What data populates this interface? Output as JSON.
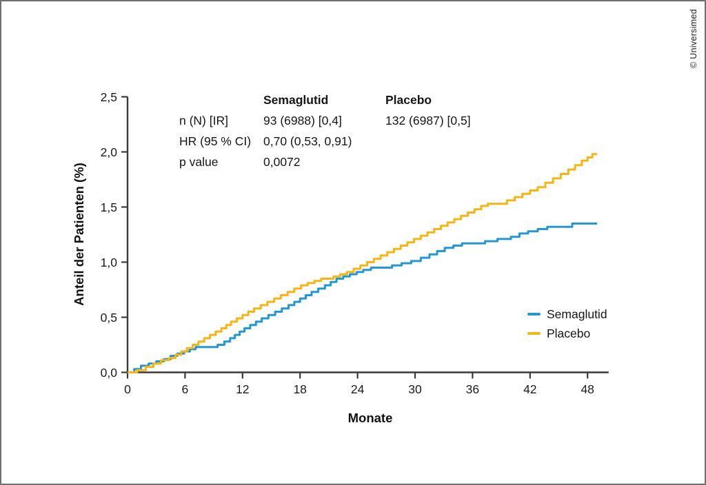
{
  "credit": "© Universimed",
  "colors": {
    "semaglutid": "#2397d3",
    "placebo": "#f6b513",
    "axis": "#3a3a3a",
    "text": "#1b1b1b"
  },
  "stats_table": {
    "col_headers": {
      "semaglutid": "Semaglutid",
      "placebo": "Placebo"
    },
    "rows": [
      {
        "label": "n (N) [IR]",
        "semaglutid": "93 (6988) [0,4]",
        "placebo": "132 (6987) [0,5]"
      },
      {
        "label": "HR (95 % CI)",
        "semaglutid": "0,70 (0,53, 0,91)",
        "placebo": ""
      },
      {
        "label": "p value",
        "semaglutid": "0,0072",
        "placebo": ""
      }
    ]
  },
  "legend": {
    "items": [
      {
        "label": "Semaglutid",
        "color": "#2397d3"
      },
      {
        "label": "Placebo",
        "color": "#f6b513"
      }
    ]
  },
  "chart_data": {
    "type": "line",
    "subtype": "kaplan-meier-cumulative-incidence-step",
    "title": "",
    "xlabel": "Monate",
    "ylabel": "Anteil der Patienten (%)",
    "xlim": [
      0,
      50.2
    ],
    "ylim": [
      0,
      2.5
    ],
    "x_ticks": [
      0,
      6,
      12,
      18,
      24,
      30,
      36,
      42,
      48
    ],
    "y_ticks": [
      {
        "value": 0.0,
        "label": "0,0"
      },
      {
        "value": 0.5,
        "label": "0,5"
      },
      {
        "value": 1.0,
        "label": "1,0"
      },
      {
        "value": 1.5,
        "label": "1,5"
      },
      {
        "value": 2.0,
        "label": "2,0"
      },
      {
        "value": 2.5,
        "label": "2,5"
      }
    ],
    "grid": false,
    "legend_position": "inside-right",
    "series": [
      {
        "name": "Semaglutid",
        "color": "#2397d3",
        "step": "after",
        "points": [
          [
            0,
            0
          ],
          [
            0.7,
            0.03
          ],
          [
            1.4,
            0.06
          ],
          [
            2.2,
            0.08
          ],
          [
            3.0,
            0.1
          ],
          [
            3.8,
            0.12
          ],
          [
            4.5,
            0.15
          ],
          [
            5.2,
            0.17
          ],
          [
            5.9,
            0.19
          ],
          [
            6.5,
            0.21
          ],
          [
            7.1,
            0.23
          ],
          [
            9.4,
            0.25
          ],
          [
            10.1,
            0.28
          ],
          [
            10.7,
            0.31
          ],
          [
            11.2,
            0.34
          ],
          [
            11.7,
            0.37
          ],
          [
            12.2,
            0.4
          ],
          [
            12.8,
            0.43
          ],
          [
            13.4,
            0.46
          ],
          [
            14.0,
            0.49
          ],
          [
            14.7,
            0.52
          ],
          [
            15.4,
            0.55
          ],
          [
            16.1,
            0.58
          ],
          [
            16.8,
            0.61
          ],
          [
            17.4,
            0.64
          ],
          [
            18.0,
            0.67
          ],
          [
            18.6,
            0.7
          ],
          [
            19.2,
            0.73
          ],
          [
            19.9,
            0.76
          ],
          [
            20.6,
            0.79
          ],
          [
            21.2,
            0.82
          ],
          [
            21.8,
            0.85
          ],
          [
            22.5,
            0.87
          ],
          [
            23.2,
            0.89
          ],
          [
            23.9,
            0.91
          ],
          [
            24.6,
            0.93
          ],
          [
            25.4,
            0.95
          ],
          [
            27.6,
            0.97
          ],
          [
            28.6,
            0.99
          ],
          [
            29.6,
            1.01
          ],
          [
            30.6,
            1.04
          ],
          [
            31.5,
            1.07
          ],
          [
            32.3,
            1.1
          ],
          [
            33.1,
            1.13
          ],
          [
            34.0,
            1.15
          ],
          [
            34.9,
            1.17
          ],
          [
            37.3,
            1.19
          ],
          [
            38.6,
            1.21
          ],
          [
            40.0,
            1.23
          ],
          [
            40.9,
            1.26
          ],
          [
            41.8,
            1.28
          ],
          [
            42.8,
            1.3
          ],
          [
            43.8,
            1.32
          ],
          [
            46.4,
            1.35
          ],
          [
            49.0,
            1.35
          ]
        ]
      },
      {
        "name": "Placebo",
        "color": "#f6b513",
        "step": "after",
        "points": [
          [
            0,
            0
          ],
          [
            1.0,
            0.02
          ],
          [
            1.9,
            0.05
          ],
          [
            2.7,
            0.08
          ],
          [
            3.5,
            0.11
          ],
          [
            4.3,
            0.13
          ],
          [
            5.0,
            0.16
          ],
          [
            5.6,
            0.19
          ],
          [
            6.2,
            0.22
          ],
          [
            6.8,
            0.25
          ],
          [
            7.4,
            0.28
          ],
          [
            8.0,
            0.31
          ],
          [
            8.6,
            0.34
          ],
          [
            9.2,
            0.37
          ],
          [
            9.8,
            0.4
          ],
          [
            10.3,
            0.43
          ],
          [
            10.8,
            0.46
          ],
          [
            11.4,
            0.49
          ],
          [
            12.0,
            0.52
          ],
          [
            12.6,
            0.55
          ],
          [
            13.2,
            0.58
          ],
          [
            13.9,
            0.61
          ],
          [
            14.6,
            0.64
          ],
          [
            15.3,
            0.67
          ],
          [
            16.0,
            0.7
          ],
          [
            16.7,
            0.73
          ],
          [
            17.4,
            0.76
          ],
          [
            18.1,
            0.79
          ],
          [
            18.8,
            0.81
          ],
          [
            19.5,
            0.83
          ],
          [
            20.2,
            0.85
          ],
          [
            21.5,
            0.87
          ],
          [
            22.2,
            0.89
          ],
          [
            22.9,
            0.91
          ],
          [
            23.6,
            0.94
          ],
          [
            24.3,
            0.97
          ],
          [
            25.0,
            1.0
          ],
          [
            25.7,
            1.03
          ],
          [
            26.4,
            1.06
          ],
          [
            27.1,
            1.09
          ],
          [
            27.8,
            1.12
          ],
          [
            28.5,
            1.15
          ],
          [
            29.2,
            1.18
          ],
          [
            29.9,
            1.21
          ],
          [
            30.6,
            1.24
          ],
          [
            31.3,
            1.27
          ],
          [
            32.0,
            1.3
          ],
          [
            32.7,
            1.33
          ],
          [
            33.4,
            1.36
          ],
          [
            34.1,
            1.39
          ],
          [
            34.8,
            1.42
          ],
          [
            35.5,
            1.45
          ],
          [
            36.2,
            1.48
          ],
          [
            36.9,
            1.51
          ],
          [
            37.6,
            1.53
          ],
          [
            39.6,
            1.56
          ],
          [
            40.4,
            1.59
          ],
          [
            41.2,
            1.62
          ],
          [
            42.0,
            1.65
          ],
          [
            42.8,
            1.68
          ],
          [
            43.6,
            1.72
          ],
          [
            44.4,
            1.76
          ],
          [
            45.2,
            1.8
          ],
          [
            46.0,
            1.84
          ],
          [
            46.7,
            1.88
          ],
          [
            47.4,
            1.92
          ],
          [
            48.0,
            1.95
          ],
          [
            48.5,
            1.98
          ],
          [
            49.0,
            1.98
          ]
        ]
      }
    ]
  }
}
